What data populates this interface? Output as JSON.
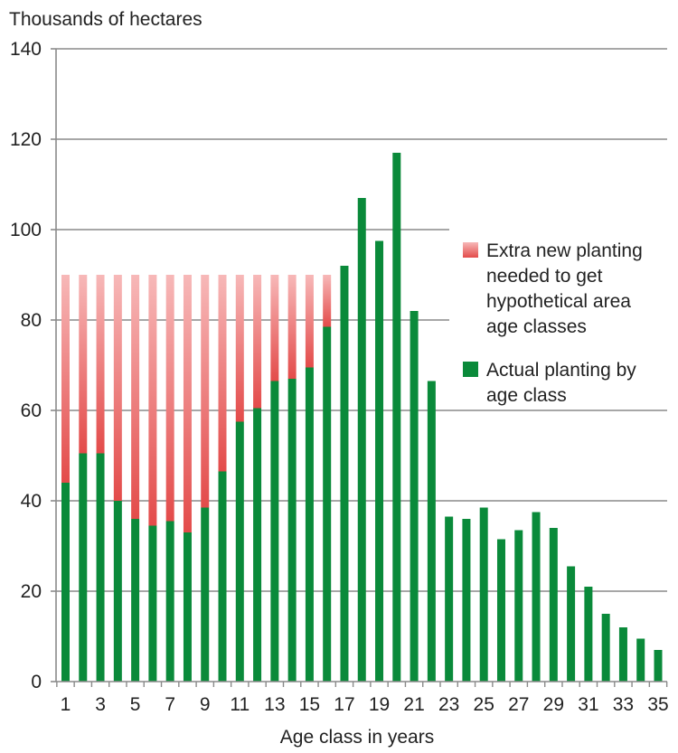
{
  "chart_data": {
    "type": "bar",
    "stacked": true,
    "ylabel": "Thousands of hectares",
    "xlabel": "Age class in years",
    "ylim": [
      0,
      140
    ],
    "yticks": [
      0,
      20,
      40,
      60,
      80,
      100,
      120,
      140
    ],
    "grid": true,
    "legend_position": "right",
    "categories": [
      1,
      2,
      3,
      4,
      5,
      6,
      7,
      8,
      9,
      10,
      11,
      12,
      13,
      14,
      15,
      16,
      17,
      18,
      19,
      20,
      21,
      22,
      23,
      24,
      25,
      26,
      27,
      28,
      29,
      30,
      31,
      32,
      33,
      34,
      35
    ],
    "xtick_labels": [
      "1",
      "3",
      "5",
      "7",
      "9",
      "11",
      "13",
      "15",
      "17",
      "19",
      "21",
      "23",
      "25",
      "27",
      "29",
      "31",
      "33",
      "35"
    ],
    "series": [
      {
        "name": "Actual planting by age class",
        "color": "#0a8a3a",
        "values": [
          44,
          50.5,
          50.5,
          40,
          36,
          34.5,
          35.5,
          33,
          38.5,
          46.5,
          57.5,
          60.5,
          66.5,
          67,
          69.5,
          78.5,
          92,
          107,
          97.5,
          117,
          82,
          66.5,
          36.5,
          36,
          38.5,
          31.5,
          33.5,
          37.5,
          34,
          25.5,
          21,
          15,
          12,
          9.5,
          7
        ]
      },
      {
        "name": "Extra new planting needed to get hypothetical area age classes",
        "legend_lines": [
          "Extra new planting",
          "needed to get",
          "hypothetical area",
          "age classes"
        ],
        "color": "#e8504f",
        "values": [
          46,
          39.5,
          39.5,
          50,
          54,
          55.5,
          54.5,
          57,
          51.5,
          43.5,
          32.5,
          29.5,
          23.5,
          23,
          20.5,
          11.5,
          0,
          0,
          0,
          0,
          0,
          0,
          0,
          0,
          0,
          0,
          0,
          0,
          0,
          0,
          0,
          0,
          0,
          0,
          0
        ]
      }
    ],
    "legend_actual_lines": [
      "Actual planting by",
      "age class"
    ]
  }
}
